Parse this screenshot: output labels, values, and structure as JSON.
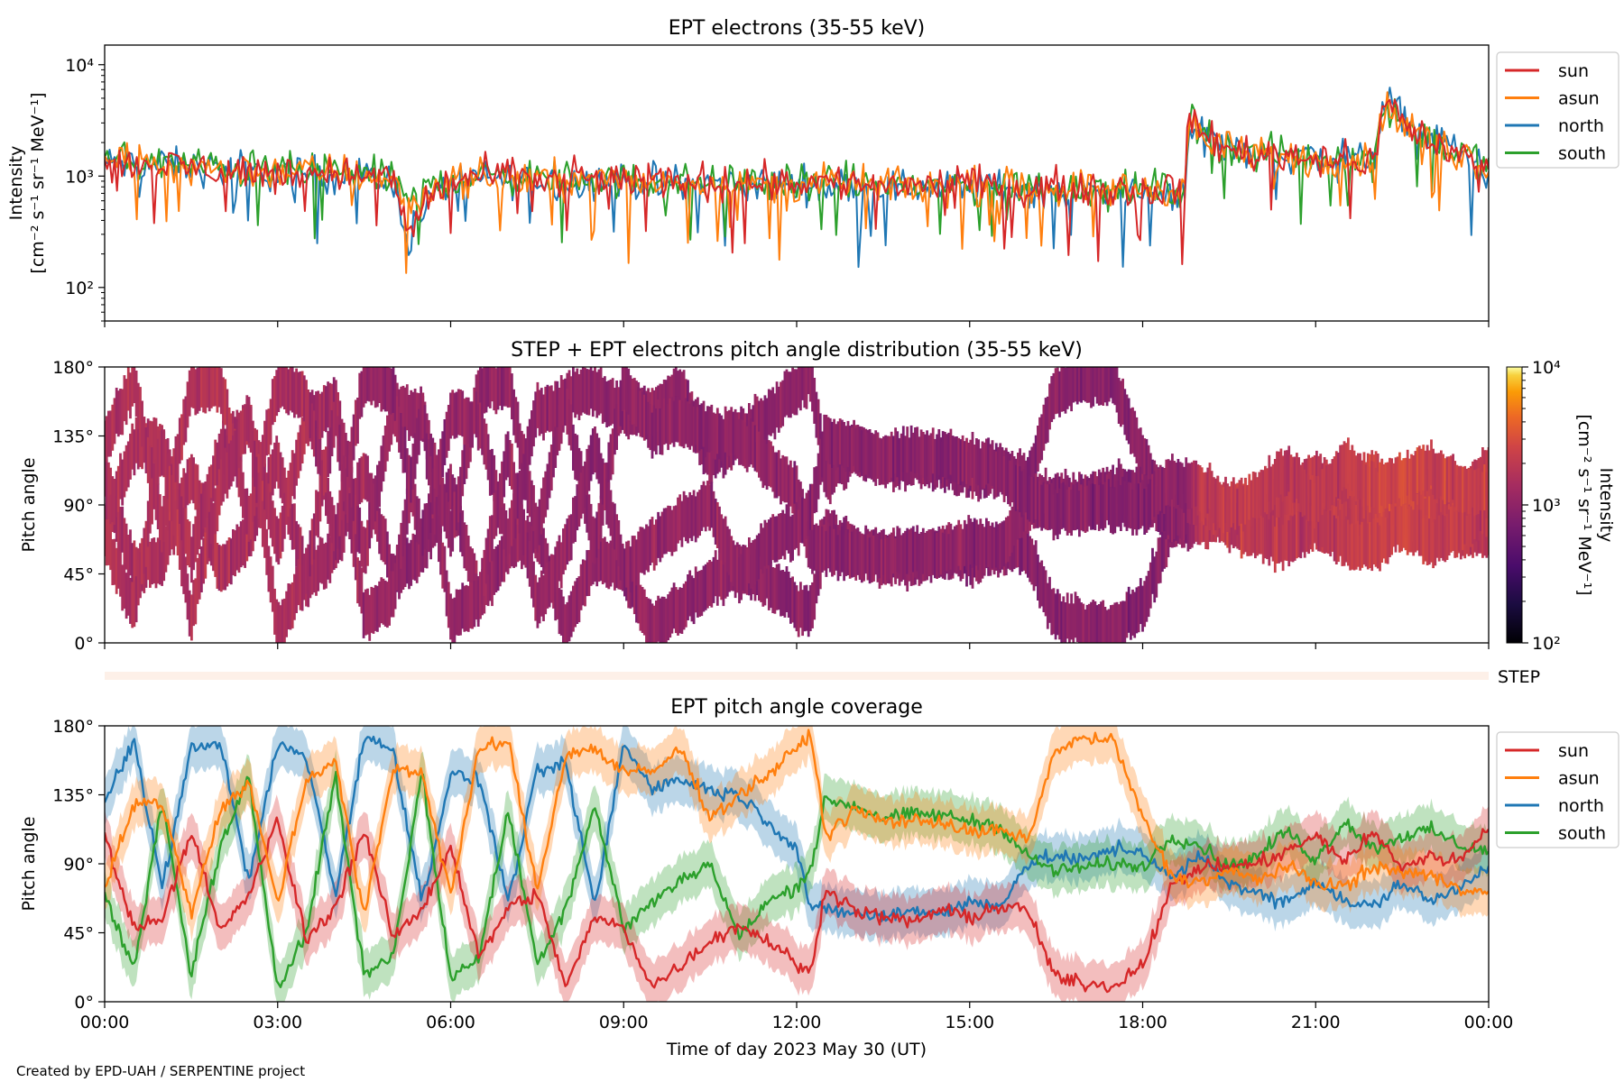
{
  "credit": "Created by EPD-UAH / SERPENTINE project",
  "x_axis": {
    "label": "Time of day 2023 May 30 (UT)",
    "tick_labels": [
      "00:00",
      "03:00",
      "06:00",
      "09:00",
      "12:00",
      "15:00",
      "18:00",
      "21:00",
      "00:00"
    ],
    "range_hours": [
      0,
      24
    ]
  },
  "colors": {
    "sun": "#d62728",
    "asun": "#ff7f0e",
    "north": "#1f77b4",
    "south": "#2ca02c"
  },
  "chart_data": [
    {
      "panel": "intensity",
      "type": "line",
      "title": "EPT electrons (35-55 keV)",
      "ylabel": "Intensity",
      "yunit": "[cm⁻² s⁻¹ sr⁻¹ MeV⁻¹]",
      "yscale": "log",
      "ylim": [
        50,
        15000
      ],
      "ytick_labels": [
        "10²",
        "10³",
        "10⁴"
      ],
      "ytick_values": [
        100,
        1000,
        10000
      ],
      "legend": {
        "placement": "outside-top-right",
        "entries": [
          "sun",
          "asun",
          "north",
          "south"
        ]
      },
      "x_hours": [
        0,
        1,
        2,
        3,
        4,
        5,
        5.25,
        6,
        7,
        8,
        9,
        10,
        11,
        12,
        13,
        14,
        15,
        16,
        17,
        18,
        18.75,
        18.8,
        19,
        19.5,
        20,
        21,
        22,
        22.25,
        22.5,
        23,
        24
      ],
      "series": [
        {
          "name": "sun",
          "values": [
            1300,
            1250,
            1150,
            1050,
            1100,
            900,
            280,
            950,
            1000,
            950,
            950,
            900,
            900,
            900,
            850,
            850,
            850,
            800,
            800,
            750,
            800,
            3200,
            2500,
            1700,
            1600,
            1500,
            1300,
            4800,
            3000,
            2000,
            1100
          ]
        },
        {
          "name": "asun",
          "values": [
            1350,
            1300,
            1150,
            1100,
            1100,
            950,
            500,
            950,
            950,
            950,
            900,
            900,
            850,
            850,
            850,
            800,
            800,
            800,
            780,
            750,
            800,
            3000,
            2300,
            1700,
            1500,
            1400,
            1400,
            4200,
            2800,
            2000,
            1200
          ]
        },
        {
          "name": "north",
          "values": [
            1300,
            1250,
            1150,
            1050,
            1050,
            900,
            250,
            900,
            950,
            900,
            900,
            850,
            850,
            850,
            800,
            800,
            800,
            780,
            750,
            700,
            750,
            3100,
            2400,
            1900,
            1600,
            1500,
            1400,
            4500,
            3300,
            2200,
            1100
          ]
        },
        {
          "name": "south",
          "values": [
            1400,
            1300,
            1200,
            1100,
            1100,
            950,
            600,
            950,
            1000,
            950,
            900,
            900,
            880,
            850,
            850,
            820,
            800,
            800,
            780,
            750,
            800,
            3400,
            2500,
            1800,
            1600,
            1500,
            1400,
            4600,
            3100,
            2100,
            1150
          ]
        }
      ]
    },
    {
      "panel": "pitch-angle-distribution",
      "type": "heatmap",
      "title": "STEP + EPT electrons pitch angle distribution (35-55 keV)",
      "ylabel": "Pitch angle",
      "ylim": [
        0,
        180
      ],
      "ytick_labels": [
        "0°",
        "45°",
        "90°",
        "135°",
        "180°"
      ],
      "ytick_values": [
        0,
        45,
        90,
        135,
        180
      ],
      "colorbar": {
        "label": "Intensity",
        "unit": "[cm⁻² s⁻¹ sr⁻¹ MeV⁻¹]",
        "scale": "log",
        "range": [
          100,
          10000
        ],
        "tick_labels": [
          "10²",
          "10³",
          "10⁴"
        ],
        "tick_values": [
          100,
          1000,
          10000
        ],
        "colormap": "inferno"
      },
      "coverage_from": "pitch-angle-coverage",
      "x_hours": [
        0,
        3,
        5.5,
        6,
        9,
        12,
        15,
        18,
        18.8,
        19,
        21,
        22.5,
        23,
        24
      ],
      "intensity": [
        1600,
        1500,
        1000,
        1100,
        1050,
        1000,
        950,
        900,
        1000,
        2000,
        1900,
        2600,
        2300,
        2000
      ],
      "step_label": "STEP"
    },
    {
      "panel": "pitch-angle-coverage",
      "type": "line",
      "title": "EPT pitch angle coverage",
      "ylabel": "Pitch angle",
      "ylim": [
        0,
        180
      ],
      "ytick_labels": [
        "0°",
        "45°",
        "90°",
        "135°",
        "180°"
      ],
      "ytick_values": [
        0,
        45,
        90,
        135,
        180
      ],
      "legend": {
        "placement": "outside-top-right",
        "entries": [
          "sun",
          "asun",
          "north",
          "south"
        ]
      },
      "band_halfwidth_deg": 15,
      "x_hours": [
        0,
        0.5,
        1,
        1.5,
        2,
        2.5,
        3,
        3.5,
        4,
        4.5,
        5,
        5.5,
        6,
        6.5,
        7,
        7.5,
        8,
        8.5,
        9,
        9.5,
        10,
        10.5,
        11,
        11.5,
        12,
        12.25,
        12.5,
        13,
        13.5,
        14,
        14.5,
        15,
        15.5,
        16,
        16.5,
        17,
        17.5,
        18,
        18.5,
        19,
        19.5,
        20,
        20.5,
        21,
        21.5,
        22,
        22.5,
        23,
        23.5,
        24
      ],
      "series": [
        {
          "name": "sun",
          "values": [
            110,
            48,
            55,
            112,
            45,
            70,
            118,
            40,
            62,
            112,
            42,
            60,
            102,
            28,
            62,
            70,
            10,
            55,
            48,
            10,
            24,
            40,
            50,
            40,
            25,
            18,
            75,
            60,
            55,
            52,
            60,
            55,
            62,
            60,
            15,
            12,
            10,
            25,
            75,
            88,
            88,
            90,
            98,
            108,
            92,
            110,
            88,
            95,
            92,
            115
          ]
        },
        {
          "name": "asun",
          "values": [
            75,
            128,
            130,
            58,
            125,
            143,
            65,
            145,
            158,
            55,
            152,
            150,
            70,
            165,
            170,
            72,
            162,
            165,
            150,
            150,
            165,
            120,
            135,
            148,
            165,
            175,
            108,
            125,
            118,
            118,
            118,
            110,
            112,
            105,
            165,
            172,
            170,
            120,
            82,
            78,
            85,
            80,
            88,
            78,
            75,
            88,
            85,
            82,
            75,
            70
          ]
        },
        {
          "name": "north",
          "values": [
            130,
            170,
            75,
            165,
            170,
            78,
            168,
            160,
            70,
            172,
            165,
            65,
            148,
            145,
            65,
            150,
            155,
            62,
            168,
            140,
            145,
            138,
            135,
            118,
            100,
            60,
            60,
            58,
            55,
            60,
            58,
            65,
            62,
            90,
            95,
            92,
            100,
            98,
            80,
            95,
            78,
            70,
            65,
            80,
            65,
            62,
            78,
            65,
            75,
            90
          ]
        },
        {
          "name": "south",
          "values": [
            70,
            20,
            130,
            18,
            100,
            145,
            10,
            45,
            148,
            18,
            30,
            150,
            15,
            30,
            125,
            25,
            62,
            128,
            48,
            65,
            80,
            90,
            42,
            65,
            75,
            88,
            132,
            128,
            120,
            122,
            122,
            118,
            115,
            95,
            85,
            88,
            90,
            88,
            108,
            102,
            88,
            95,
            112,
            92,
            118,
            100,
            108,
            112,
            102,
            98
          ]
        }
      ]
    }
  ]
}
